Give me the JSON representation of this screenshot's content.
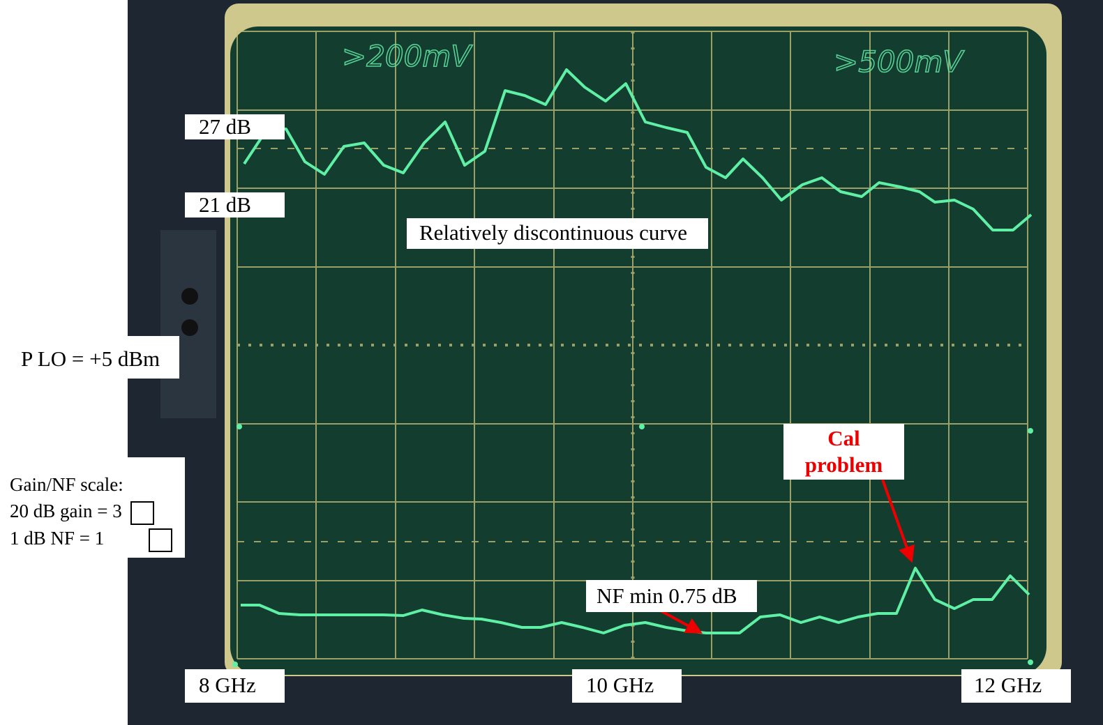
{
  "screen": {
    "range_left": ">200mV",
    "range_right": ">500mV"
  },
  "labels": {
    "gain_top": "27 dB",
    "gain_bottom": "21 dB",
    "curve_note": "Relatively discontinuous curve",
    "lo_power": "P LO = +5 dBm",
    "scale_title": "Gain/NF scale:",
    "scale_gain": "20 dB gain = 3",
    "scale_nf": "1 dB NF = 1",
    "cal_line1": "Cal",
    "cal_line2": "problem",
    "nf_min": "NF min 0.75 dB",
    "freq_left": "8 GHz",
    "freq_mid": "10 GHz",
    "freq_right": "12 GHz"
  }
}
